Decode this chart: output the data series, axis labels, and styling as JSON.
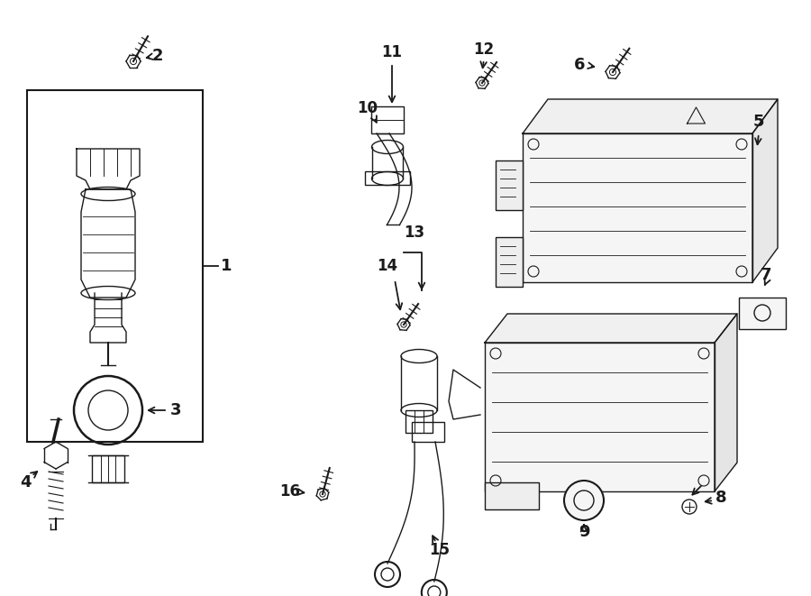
{
  "bg_color": "#ffffff",
  "line_color": "#1a1a1a",
  "fig_width": 9.0,
  "fig_height": 6.61,
  "dpi": 100,
  "lw": 1.0
}
